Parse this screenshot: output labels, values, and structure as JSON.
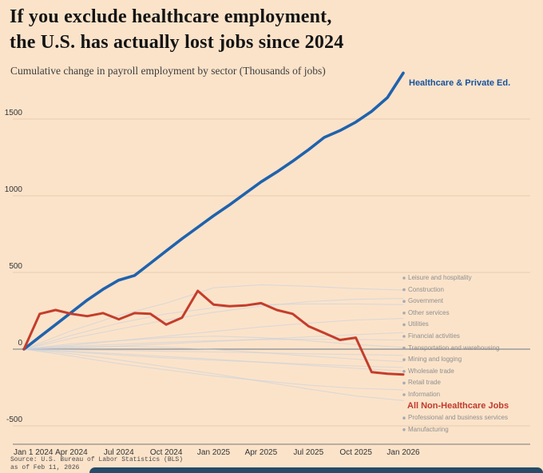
{
  "header": {
    "title_line1": "If you exclude healthcare employment,",
    "title_line2": "the U.S. has actually lost jobs since 2024",
    "subtitle": "Cumulative change in payroll employment by sector (Thousands of jobs)"
  },
  "source": {
    "line1": "Source: U.S. Bureau of Labor Statistics (BLS)",
    "line2": "as of Feb 11, 2026"
  },
  "colors": {
    "background": "#fbe3ca",
    "healthcare_line": "#1f62ad",
    "non_healthcare_line": "#c43d2b",
    "faint_line": "#c8d0dc",
    "grid_line": "#e7cdae",
    "zero_line": "#9b9b9b",
    "axis_line": "#777777",
    "label_gray": "#8f8f8f",
    "bottom_bar": "#264a67"
  },
  "chart_data": {
    "type": "line",
    "title": "Cumulative change in payroll employment by sector (Thousands of jobs)",
    "xlabel": "",
    "ylabel": "Thousands of jobs",
    "x_tick_labels": [
      "Jan 1 2024",
      "Apr 2024",
      "Jul 2024",
      "Oct 2024",
      "Jan 2025",
      "Apr 2025",
      "Jul 2025",
      "Oct 2025",
      "Jan 2026"
    ],
    "yticks": [
      -500,
      0,
      500,
      1000,
      1500
    ],
    "ylim": [
      -560,
      1850
    ],
    "grid": true,
    "legend_position": "direct labels, right side",
    "series": [
      {
        "name": "Healthcare & Private Ed.",
        "role": "healthcare",
        "color": "#1f62ad",
        "x": [
          0,
          1,
          2,
          3,
          4,
          5,
          6,
          7,
          8,
          9,
          10,
          11,
          12,
          13,
          14,
          15,
          16,
          17,
          18,
          19,
          20,
          21,
          22,
          23,
          24
        ],
        "values": [
          0,
          80,
          160,
          240,
          320,
          390,
          450,
          480,
          560,
          640,
          720,
          795,
          870,
          940,
          1015,
          1090,
          1155,
          1225,
          1300,
          1380,
          1425,
          1480,
          1550,
          1640,
          1800
        ]
      },
      {
        "name": "Leisure and hospitality",
        "role": "sector",
        "color": "#c8d0dc",
        "x": [
          0,
          3,
          6,
          9,
          12,
          15,
          18,
          21,
          24
        ],
        "values": [
          0,
          120,
          220,
          300,
          400,
          420,
          410,
          395,
          385
        ]
      },
      {
        "name": "Construction",
        "role": "sector",
        "color": "#c8d0dc",
        "x": [
          0,
          3,
          6,
          9,
          12,
          15,
          18,
          21,
          24
        ],
        "values": [
          0,
          70,
          130,
          190,
          240,
          280,
          310,
          325,
          330
        ]
      },
      {
        "name": "Government",
        "role": "sector",
        "color": "#c8d0dc",
        "x": [
          0,
          3,
          6,
          9,
          12,
          15,
          18,
          21,
          24
        ],
        "values": [
          0,
          90,
          170,
          230,
          270,
          290,
          295,
          295,
          290
        ]
      },
      {
        "name": "Other services",
        "role": "sector",
        "color": "#c8d0dc",
        "x": [
          0,
          3,
          6,
          9,
          12,
          15,
          18,
          21,
          24
        ],
        "values": [
          0,
          25,
          55,
          85,
          115,
          145,
          170,
          190,
          200
        ]
      },
      {
        "name": "Utilities",
        "role": "sector",
        "color": "#c8d0dc",
        "x": [
          0,
          3,
          6,
          9,
          12,
          15,
          18,
          21,
          24
        ],
        "values": [
          0,
          8,
          20,
          35,
          50,
          65,
          80,
          95,
          108
        ]
      },
      {
        "name": "Financial activities",
        "role": "sector",
        "color": "#c8d0dc",
        "x": [
          0,
          3,
          6,
          9,
          12,
          15,
          18,
          21,
          24
        ],
        "values": [
          0,
          18,
          32,
          45,
          55,
          62,
          65,
          63,
          60
        ]
      },
      {
        "name": "Transportation and warehousing",
        "role": "sector",
        "color": "#c8d0dc",
        "x": [
          0,
          3,
          6,
          9,
          12,
          15,
          18,
          21,
          24
        ],
        "values": [
          0,
          35,
          55,
          75,
          85,
          75,
          55,
          30,
          12
        ]
      },
      {
        "name": "Mining and logging",
        "role": "sector",
        "color": "#c8d0dc",
        "x": [
          0,
          3,
          6,
          9,
          12,
          15,
          18,
          21,
          24
        ],
        "values": [
          0,
          -4,
          -8,
          -14,
          -18,
          -24,
          -30,
          -35,
          -40
        ]
      },
      {
        "name": "Wholesale trade",
        "role": "sector",
        "color": "#c8d0dc",
        "x": [
          0,
          3,
          6,
          9,
          12,
          15,
          18,
          21,
          24
        ],
        "values": [
          0,
          12,
          18,
          12,
          -2,
          -22,
          -45,
          -65,
          -82
        ]
      },
      {
        "name": "Retail trade",
        "role": "sector",
        "color": "#c8d0dc",
        "x": [
          0,
          3,
          6,
          9,
          12,
          15,
          18,
          21,
          24
        ],
        "values": [
          0,
          -18,
          -38,
          -58,
          -72,
          -85,
          -98,
          -110,
          -120
        ]
      },
      {
        "name": "Information",
        "role": "sector",
        "color": "#c8d0dc",
        "x": [
          0,
          3,
          6,
          9,
          12,
          15,
          18,
          21,
          24
        ],
        "values": [
          0,
          -14,
          -30,
          -48,
          -65,
          -85,
          -105,
          -125,
          -142
        ]
      },
      {
        "name": "All Non-Healthcare Jobs",
        "role": "non_healthcare",
        "color": "#c43d2b",
        "x": [
          0,
          1,
          2,
          3,
          4,
          5,
          6,
          7,
          8,
          9,
          10,
          11,
          12,
          13,
          14,
          15,
          16,
          17,
          18,
          19,
          20,
          21,
          22,
          23,
          24
        ],
        "values": [
          0,
          230,
          255,
          230,
          215,
          235,
          195,
          235,
          230,
          160,
          205,
          380,
          290,
          280,
          285,
          300,
          255,
          230,
          150,
          105,
          60,
          75,
          -150,
          -160,
          -165
        ]
      },
      {
        "name": "Professional and business services",
        "role": "sector",
        "color": "#c8d0dc",
        "x": [
          0,
          3,
          6,
          9,
          12,
          15,
          18,
          21,
          24
        ],
        "values": [
          0,
          -45,
          -95,
          -135,
          -175,
          -205,
          -235,
          -255,
          -265
        ]
      },
      {
        "name": "Manufacturing",
        "role": "sector",
        "color": "#c8d0dc",
        "x": [
          0,
          3,
          6,
          9,
          12,
          15,
          18,
          21,
          24
        ],
        "values": [
          0,
          -30,
          -70,
          -115,
          -160,
          -210,
          -260,
          -305,
          -335
        ]
      }
    ]
  }
}
